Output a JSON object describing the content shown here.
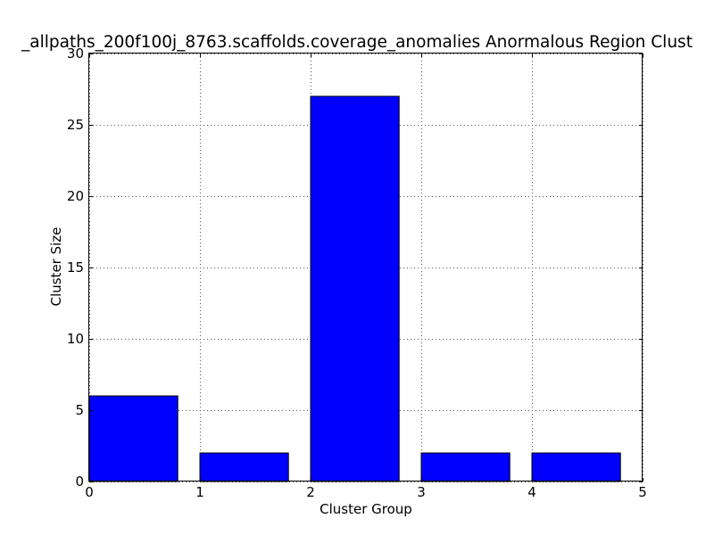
{
  "chart_data": {
    "type": "bar",
    "title": "_allpaths_200f100j_8763.scaffolds.coverage_anomalies Anormalous Region Clust",
    "xlabel": "Cluster Group",
    "ylabel": "Cluster Size",
    "xlim": [
      0,
      5
    ],
    "ylim": [
      0,
      30
    ],
    "x_ticks": [
      "0",
      "1",
      "2",
      "3",
      "4",
      "5"
    ],
    "y_ticks": [
      "0",
      "5",
      "10",
      "15",
      "20",
      "25",
      "30"
    ],
    "bar_width": 0.8,
    "bars": [
      {
        "x": 0,
        "value": 6
      },
      {
        "x": 1,
        "value": 2
      },
      {
        "x": 2,
        "value": 27
      },
      {
        "x": 3,
        "value": 2
      },
      {
        "x": 4,
        "value": 2
      }
    ],
    "grid": true,
    "bar_color": "#0000ff",
    "edge_color": "#000000",
    "grid_color": "#555555"
  }
}
